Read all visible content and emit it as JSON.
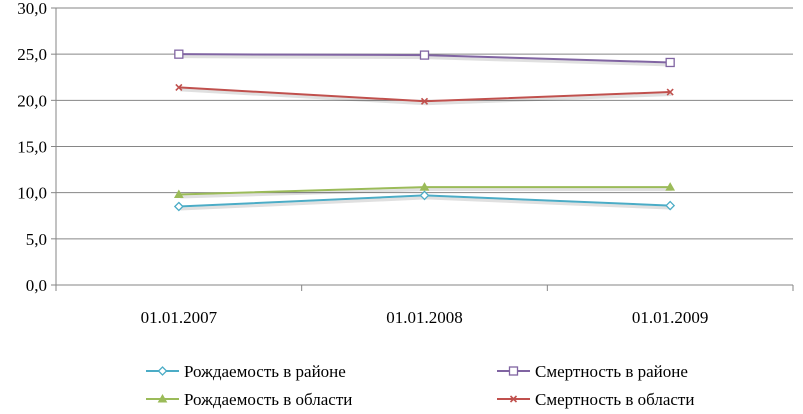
{
  "chart_data": {
    "type": "line",
    "categories": [
      "01.01.2007",
      "01.01.2008",
      "01.01.2009"
    ],
    "ylim": [
      0,
      30
    ],
    "yticks": [
      "0,0",
      "5,0",
      "10,0",
      "15,0",
      "20,0",
      "25,0",
      "30,0"
    ],
    "grid": true,
    "legend_position": "bottom",
    "series": [
      {
        "name": "Рождаемость в районе",
        "values": [
          8.5,
          9.7,
          8.6
        ],
        "color": "#4bacc6",
        "marker": "diamond"
      },
      {
        "name": "Смертность в районе",
        "values": [
          25.0,
          24.9,
          24.1
        ],
        "color": "#8064a2",
        "marker": "square"
      },
      {
        "name": "Рождаемость в области",
        "values": [
          9.8,
          10.6,
          10.6
        ],
        "color": "#9bbb59",
        "marker": "triangle"
      },
      {
        "name": "Смертность в области",
        "values": [
          21.4,
          19.9,
          20.9
        ],
        "color": "#c0504d",
        "marker": "x"
      }
    ]
  }
}
